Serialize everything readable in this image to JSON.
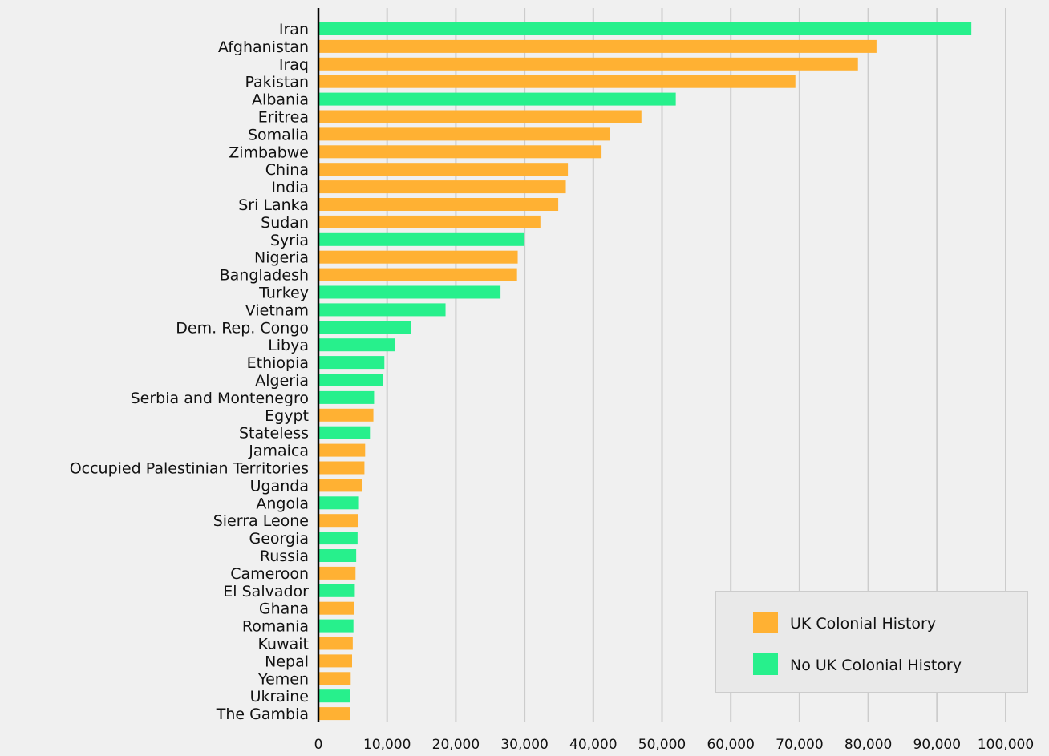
{
  "chart_data": {
    "type": "bar",
    "orientation": "horizontal",
    "categories": [
      "Iran",
      "Afghanistan",
      "Iraq",
      "Pakistan",
      "Albania",
      "Eritrea",
      "Somalia",
      "Zimbabwe",
      "China",
      "India",
      "Sri Lanka",
      "Sudan",
      "Syria",
      "Nigeria",
      "Bangladesh",
      "Turkey",
      "Vietnam",
      "Dem. Rep. Congo",
      "Libya",
      "Ethiopia",
      "Algeria",
      "Serbia and Montenegro",
      "Egypt",
      "Stateless",
      "Jamaica",
      "Occupied Palestinian Territories",
      "Uganda",
      "Angola",
      "Sierra Leone",
      "Georgia",
      "Russia",
      "Cameroon",
      "El Salvador",
      "Ghana",
      "Romania",
      "Kuwait",
      "Nepal",
      "Yemen",
      "Ukraine",
      "The Gambia"
    ],
    "values": [
      95000,
      81200,
      78500,
      69400,
      52000,
      47000,
      42400,
      41200,
      36300,
      36000,
      34900,
      32300,
      30000,
      29000,
      28900,
      26500,
      18500,
      13500,
      11200,
      9600,
      9400,
      8100,
      8000,
      7500,
      6800,
      6700,
      6400,
      5900,
      5800,
      5700,
      5500,
      5400,
      5300,
      5200,
      5100,
      5000,
      4900,
      4700,
      4600,
      4600
    ],
    "groups": [
      "no",
      "uk",
      "uk",
      "uk",
      "no",
      "uk",
      "uk",
      "uk",
      "uk",
      "uk",
      "uk",
      "uk",
      "no",
      "uk",
      "uk",
      "no",
      "no",
      "no",
      "no",
      "no",
      "no",
      "no",
      "uk",
      "no",
      "uk",
      "uk",
      "uk",
      "no",
      "uk",
      "no",
      "no",
      "uk",
      "no",
      "uk",
      "no",
      "uk",
      "uk",
      "uk",
      "no",
      "uk"
    ],
    "series": [
      {
        "name": "UK Colonial History",
        "key": "uk",
        "color": "#ffb133"
      },
      {
        "name": "No UK Colonial History",
        "key": "no",
        "color": "#27f08c"
      }
    ],
    "xlim": [
      0,
      100000
    ],
    "xticks": [
      0,
      10000,
      20000,
      30000,
      40000,
      50000,
      60000,
      70000,
      80000,
      90000,
      100000
    ],
    "xtick_labels": [
      "0",
      "10,000",
      "20,000",
      "30,000",
      "40,000",
      "50,000",
      "60,000",
      "70,000",
      "80,000",
      "90,000",
      "100,000"
    ],
    "grid": "vertical",
    "legend_position": "bottom-right",
    "title": "",
    "xlabel": "",
    "ylabel": ""
  }
}
